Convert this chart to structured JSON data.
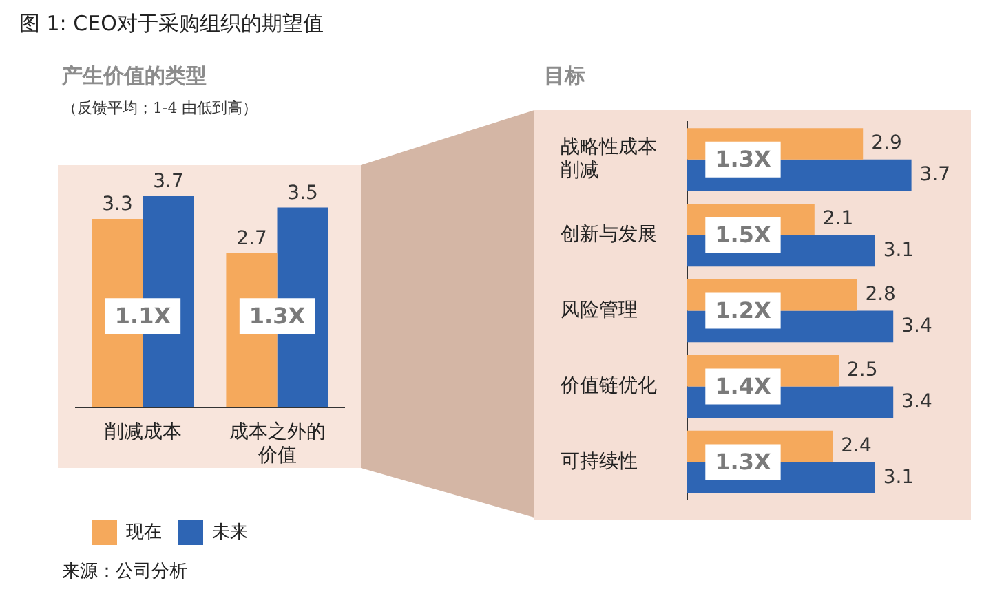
{
  "chart_data": [
    {
      "type": "bar",
      "title": "产生价值的类型",
      "subtitle": "（反馈平均；1-4 由低到高）",
      "categories": [
        "削减成本",
        "成本之外的价值"
      ],
      "series": [
        {
          "name": "现在",
          "color": "#f5a95c",
          "values": [
            3.3,
            2.7
          ]
        },
        {
          "name": "未来",
          "color": "#2e65b4",
          "values": [
            3.7,
            3.5
          ]
        }
      ],
      "data_labels": true,
      "legend": "bottom left",
      "annotations": [
        "图 1: CEO对于采购组织的期望值",
        {
          "text": "1.1X",
          "x": "削减成本"
        },
        {
          "text": "1.3X",
          "x": "成本之外的价值"
        },
        "来源：公司分析"
      ]
    },
    {
      "type": "bar",
      "orientation": "horizontal",
      "title": "目标",
      "categories": [
        "战略性成本削减",
        "创新与发展",
        "风险管理",
        "价值链优化",
        "可持续性"
      ],
      "series": [
        {
          "color": "#f5a95c",
          "values": [
            2.9,
            2.1,
            2.8,
            2.5,
            2.4
          ]
        },
        {
          "color": "#2e65b4",
          "values": [
            3.7,
            3.1,
            3.4,
            3.4,
            3.1
          ]
        }
      ],
      "data_labels": true,
      "annotations": [
        {
          "text": "1.3X",
          "y": "战略性成本削减"
        },
        {
          "text": "1.5X",
          "y": "创新与发展"
        },
        {
          "text": "1.2X",
          "y": "风险管理"
        },
        {
          "text": "1.4X",
          "y": "价值链优化"
        },
        {
          "text": "1.3X",
          "y": "可持续性"
        }
      ]
    }
  ]
}
